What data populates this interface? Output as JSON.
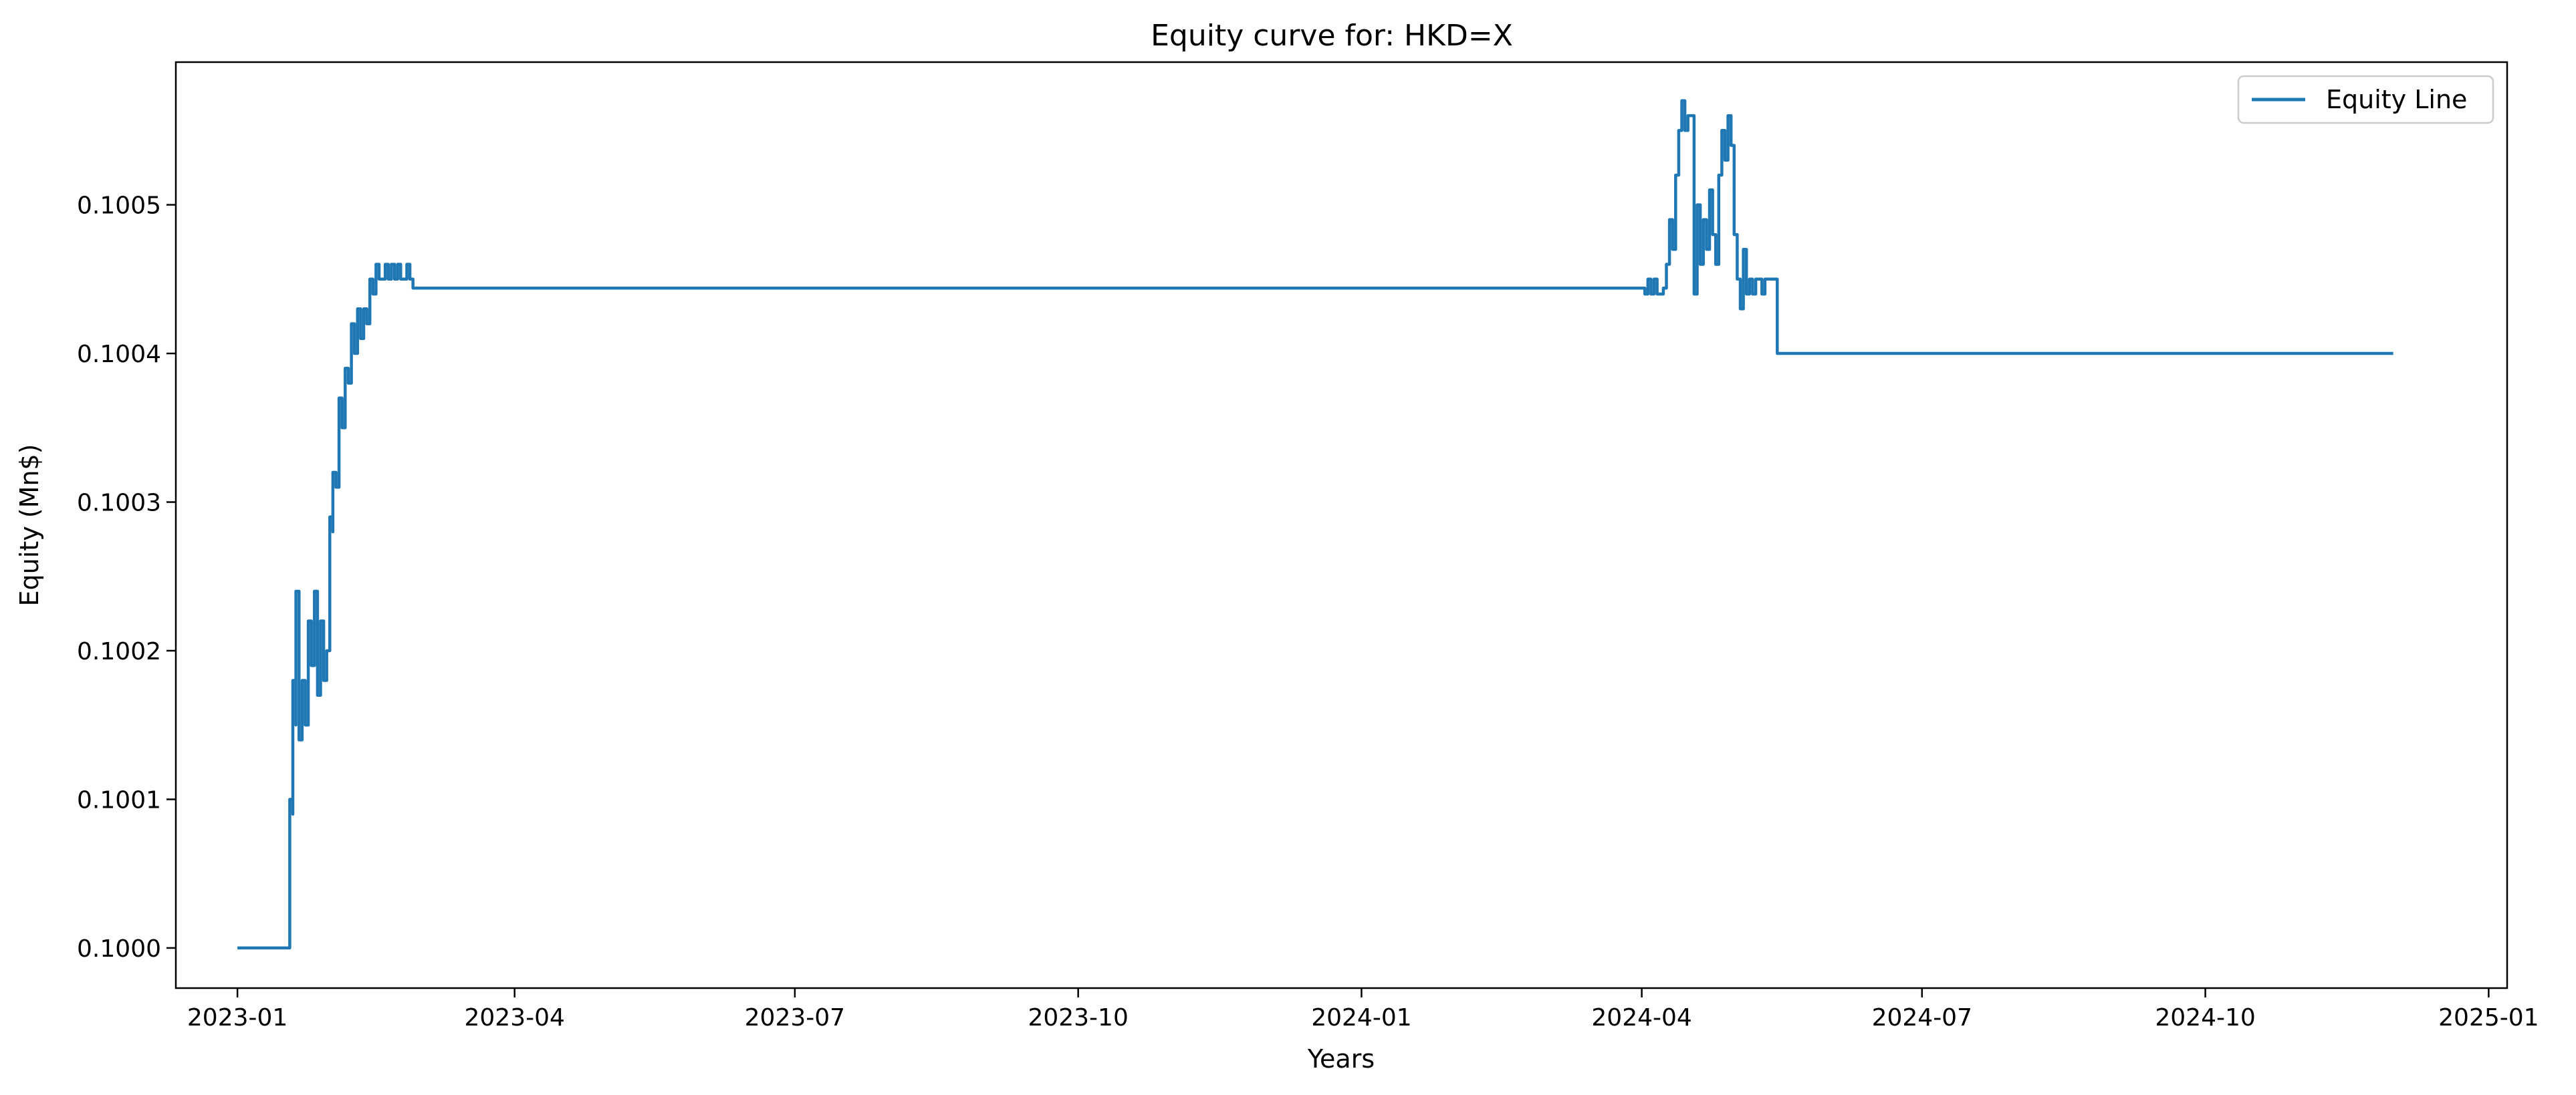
{
  "chart_data": {
    "type": "line",
    "title": "Equity curve for: HKD=X",
    "xlabel": "Years",
    "ylabel": "Equity (Mn$)",
    "x_ticks": [
      "2023-01",
      "2023-04",
      "2023-07",
      "2023-10",
      "2024-01",
      "2024-04",
      "2024-07",
      "2024-10",
      "2025-01"
    ],
    "y_ticks": [
      "0.1000",
      "0.1001",
      "0.1002",
      "0.1003",
      "0.1004",
      "0.1005"
    ],
    "xlim": [
      "2022-12-12",
      "2025-01-07"
    ],
    "ylim": [
      0.099973,
      0.100596
    ],
    "grid": false,
    "legend": {
      "position": "top-right",
      "entries": [
        "Equity Line"
      ]
    },
    "series": [
      {
        "name": "Equity Line",
        "color": "#1f77b4",
        "x": [
          "2023-01-01",
          "2023-01-17",
          "2023-01-18",
          "2023-01-18",
          "2023-01-19",
          "2023-01-19",
          "2023-01-20",
          "2023-01-20",
          "2023-01-21",
          "2023-01-22",
          "2023-01-23",
          "2023-01-24",
          "2023-01-25",
          "2023-01-26",
          "2023-01-27",
          "2023-01-28",
          "2023-01-29",
          "2023-01-30",
          "2023-01-31",
          "2023-02-01",
          "2023-02-01",
          "2023-02-02",
          "2023-02-03",
          "2023-02-04",
          "2023-02-05",
          "2023-02-06",
          "2023-02-07",
          "2023-02-08",
          "2023-02-09",
          "2023-02-10",
          "2023-02-11",
          "2023-02-12",
          "2023-02-13",
          "2023-02-14",
          "2023-02-15",
          "2023-02-16",
          "2023-02-17",
          "2023-02-18",
          "2023-02-19",
          "2023-02-20",
          "2023-02-21",
          "2023-02-22",
          "2023-02-23",
          "2023-02-24",
          "2023-02-25",
          "2023-02-26",
          "2023-02-27",
          "2024-04-01",
          "2024-04-02",
          "2024-04-03",
          "2024-04-04",
          "2024-04-05",
          "2024-04-06",
          "2024-04-08",
          "2024-04-09",
          "2024-04-10",
          "2024-04-11",
          "2024-04-12",
          "2024-04-13",
          "2024-04-14",
          "2024-04-15",
          "2024-04-16",
          "2024-04-17",
          "2024-04-18",
          "2024-04-19",
          "2024-04-20",
          "2024-04-21",
          "2024-04-22",
          "2024-04-23",
          "2024-04-24",
          "2024-04-25",
          "2024-04-26",
          "2024-04-27",
          "2024-04-28",
          "2024-04-29",
          "2024-04-30",
          "2024-05-01",
          "2024-05-02",
          "2024-05-03",
          "2024-05-04",
          "2024-05-05",
          "2024-05-06",
          "2024-05-07",
          "2024-05-08",
          "2024-05-09",
          "2024-05-10",
          "2024-05-11",
          "2024-05-13",
          "2024-05-14",
          "2024-05-15",
          "2024-05-15",
          "2024-12-01"
        ],
        "y": [
          0.1,
          0.1,
          0.10002,
          0.1001,
          0.10009,
          0.10018,
          0.10015,
          0.10024,
          0.10014,
          0.10018,
          0.10015,
          0.10022,
          0.10019,
          0.10024,
          0.10017,
          0.10022,
          0.10018,
          0.1002,
          0.10029,
          0.10028,
          0.10032,
          0.10031,
          0.10037,
          0.10035,
          0.10039,
          0.10038,
          0.10042,
          0.1004,
          0.10043,
          0.10041,
          0.10043,
          0.10042,
          0.10045,
          0.10044,
          0.10046,
          0.10045,
          0.10045,
          0.10046,
          0.10045,
          0.10046,
          0.10045,
          0.10046,
          0.10045,
          0.10045,
          0.10046,
          0.10045,
          0.100444,
          0.100444,
          0.10044,
          0.10045,
          0.10044,
          0.10045,
          0.10044,
          0.100444,
          0.10046,
          0.10049,
          0.10047,
          0.10052,
          0.10055,
          0.10057,
          0.10055,
          0.10056,
          0.10056,
          0.10044,
          0.1005,
          0.10046,
          0.10049,
          0.10047,
          0.10051,
          0.10048,
          0.10046,
          0.10052,
          0.10055,
          0.10053,
          0.10056,
          0.10054,
          0.10048,
          0.10045,
          0.10043,
          0.10047,
          0.10044,
          0.10045,
          0.10044,
          0.10045,
          0.10045,
          0.10044,
          0.10045,
          0.10045,
          0.10045,
          0.10045,
          0.1004,
          0.1004
        ]
      }
    ]
  }
}
